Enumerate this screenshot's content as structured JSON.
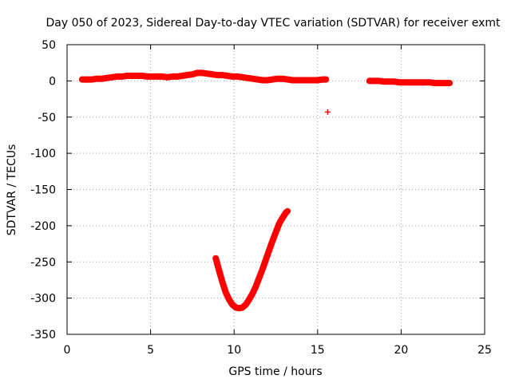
{
  "chart_data": {
    "type": "scatter",
    "title": "Day 050 of 2023, Sidereal Day-to-day VTEC variation (SDTVAR) for receiver exmt",
    "xlabel": "GPS time / hours",
    "ylabel": "SDTVAR / TECUs",
    "xlim": [
      0,
      25
    ],
    "ylim": [
      -350,
      50
    ],
    "x_ticks": [
      0,
      5,
      10,
      15,
      20,
      25
    ],
    "y_ticks": [
      50,
      0,
      -50,
      -100,
      -150,
      -200,
      -250,
      -300,
      -350
    ],
    "grid": true,
    "color": "#ff0000",
    "marker": "+",
    "series": [
      {
        "x": [
          0.9,
          1.2,
          1.5,
          1.8,
          2.1,
          2.4,
          2.7,
          3.0,
          3.3,
          3.6,
          3.9,
          4.2,
          4.5,
          4.8,
          5.1,
          5.4,
          5.7,
          6.0,
          6.3,
          6.6,
          6.9,
          7.2,
          7.5,
          7.8,
          8.1,
          8.4,
          8.7,
          9.0,
          9.3,
          9.6,
          9.9,
          10.2,
          10.5,
          10.8,
          11.1,
          11.4,
          11.7,
          12.0,
          12.3,
          12.6,
          12.9,
          13.2,
          13.5,
          13.8,
          14.1,
          14.4,
          14.7,
          15.0,
          15.3,
          15.5
        ],
        "y": [
          2,
          2,
          2,
          3,
          3,
          4,
          5,
          6,
          6,
          7,
          7,
          7,
          7,
          6,
          6,
          6,
          6,
          5,
          6,
          6,
          7,
          8,
          9,
          11,
          11,
          10,
          9,
          8,
          8,
          7,
          6,
          6,
          5,
          4,
          3,
          2,
          1,
          1,
          2,
          3,
          3,
          2,
          1,
          1,
          1,
          1,
          1,
          1,
          2,
          2
        ]
      },
      {
        "x": [
          18.1,
          18.4,
          18.7,
          19.0,
          19.3,
          19.6,
          19.9,
          20.2,
          20.5,
          20.8,
          21.1,
          21.4,
          21.7,
          22.0,
          22.3,
          22.6,
          22.9
        ],
        "y": [
          0,
          0,
          0,
          -1,
          -1,
          -1,
          -2,
          -2,
          -2,
          -2,
          -2,
          -2,
          -2,
          -3,
          -3,
          -3,
          -3
        ]
      },
      {
        "x": [
          8.9,
          9.1,
          9.3,
          9.5,
          9.7,
          9.9,
          10.1,
          10.3,
          10.5,
          10.7,
          10.9,
          11.1,
          11.3,
          11.5,
          11.7,
          11.9,
          12.1,
          12.3,
          12.5,
          12.7,
          12.9,
          13.1,
          13.2
        ],
        "y": [
          -245,
          -262,
          -278,
          -292,
          -302,
          -309,
          -313,
          -314,
          -313,
          -309,
          -302,
          -294,
          -284,
          -272,
          -260,
          -247,
          -234,
          -221,
          -209,
          -197,
          -189,
          -182,
          -180
        ]
      },
      {
        "x": [
          15.6
        ],
        "y": [
          -43
        ]
      }
    ]
  }
}
